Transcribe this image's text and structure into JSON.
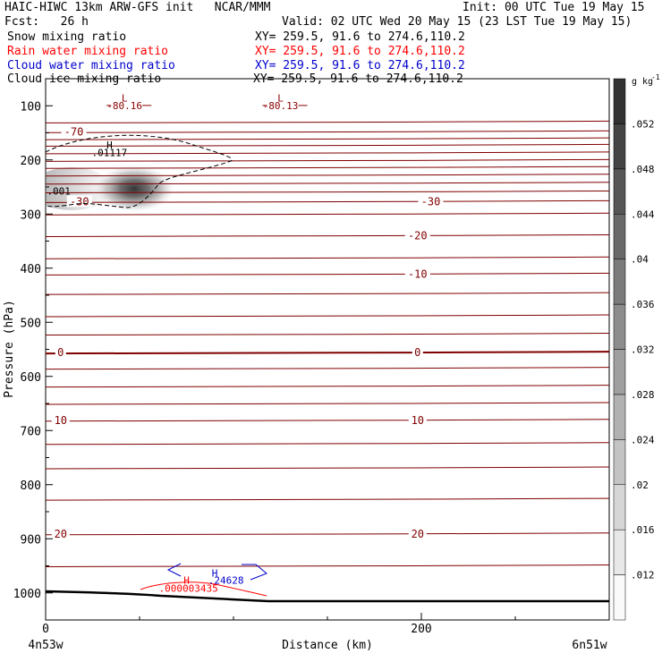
{
  "header": {
    "left1": "HAIC-HIWC 13km ARW-GFS init   NCAR/MMM",
    "right1": "Init: 00 UTC Tue 19 May 15",
    "left2": "Fcst:   26 h",
    "right2": "Valid: 02 UTC Wed 20 May 15 (23 LST Tue 19 May 15)",
    "fields": [
      {
        "name": "Snow mixing ratio",
        "xy": "XY= 259.5, 91.6 to 274.6,110.2",
        "color": "#000000"
      },
      {
        "name": "Rain water mixing ratio",
        "xy": "XY= 259.5, 91.6 to 274.6,110.2",
        "color": "#ff0000"
      },
      {
        "name": "Cloud water mixing ratio",
        "xy": "XY= 259.5, 91.6 to 274.6,110.2",
        "color": "#0000cc"
      },
      {
        "name": "Cloud ice mixing ratio",
        "xy": "XY= 259.5, 91.6 to 274.6,110.2",
        "color": "#000000"
      }
    ]
  },
  "chart_data": {
    "type": "contour-cross-section",
    "xlabel": "Distance (km)",
    "ylabel": "Pressure (hPa)",
    "xlim": [
      0,
      300
    ],
    "ylim": [
      50,
      1050
    ],
    "x_ticks": [
      0,
      200
    ],
    "x_minor_ticks": [
      50,
      100,
      150,
      250,
      300
    ],
    "y_ticks": [
      100,
      200,
      300,
      400,
      500,
      600,
      700,
      800,
      900,
      1000
    ],
    "endpoints": {
      "left": "4n53w",
      "right": "6n51w"
    },
    "colorbar": {
      "unit": "g kg",
      "unit_exp": "-1",
      "ticks": [
        ".012",
        ".016",
        ".02",
        ".024",
        ".028",
        ".032",
        ".036",
        ".04",
        ".044",
        ".048",
        ".052"
      ]
    },
    "temperature_levels": [
      {
        "value": "-70",
        "p": 148
      },
      {
        "value": "-30",
        "p": 277
      },
      {
        "value": "-20",
        "p": 340
      },
      {
        "value": "-10",
        "p": 411
      },
      {
        "value": "0",
        "p": 556
      },
      {
        "value": "10",
        "p": 681
      },
      {
        "value": "20",
        "p": 891
      }
    ],
    "annotations": [
      {
        "text": "L",
        "x": 42,
        "p": 92,
        "color": "#8b0000"
      },
      {
        "text": "-80.16",
        "x": 42,
        "p": 106,
        "color": "#8b0000"
      },
      {
        "text": "L",
        "x": 125,
        "p": 92,
        "color": "#8b0000"
      },
      {
        "text": "-80.13",
        "x": 125,
        "p": 106,
        "color": "#8b0000"
      },
      {
        "text": "H",
        "x": 34,
        "p": 179,
        "color": "#000000"
      },
      {
        "text": ".01117",
        "x": 34,
        "p": 193,
        "color": "#000000"
      },
      {
        "text": ".001",
        "x": 7,
        "p": 264,
        "color": "#000000"
      },
      {
        "text": "H",
        "x": 90,
        "p": 970,
        "color": "#0000cc"
      },
      {
        "text": ".24628",
        "x": 96,
        "p": 983,
        "color": "#0000cc"
      },
      {
        "text": "H",
        "x": 75,
        "p": 983,
        "color": "#ff0000"
      },
      {
        "text": ".000003435",
        "x": 76,
        "p": 998,
        "color": "#ff0000"
      }
    ],
    "snow_max": {
      "x": 49,
      "p": 250,
      "value": 0.052
    }
  }
}
